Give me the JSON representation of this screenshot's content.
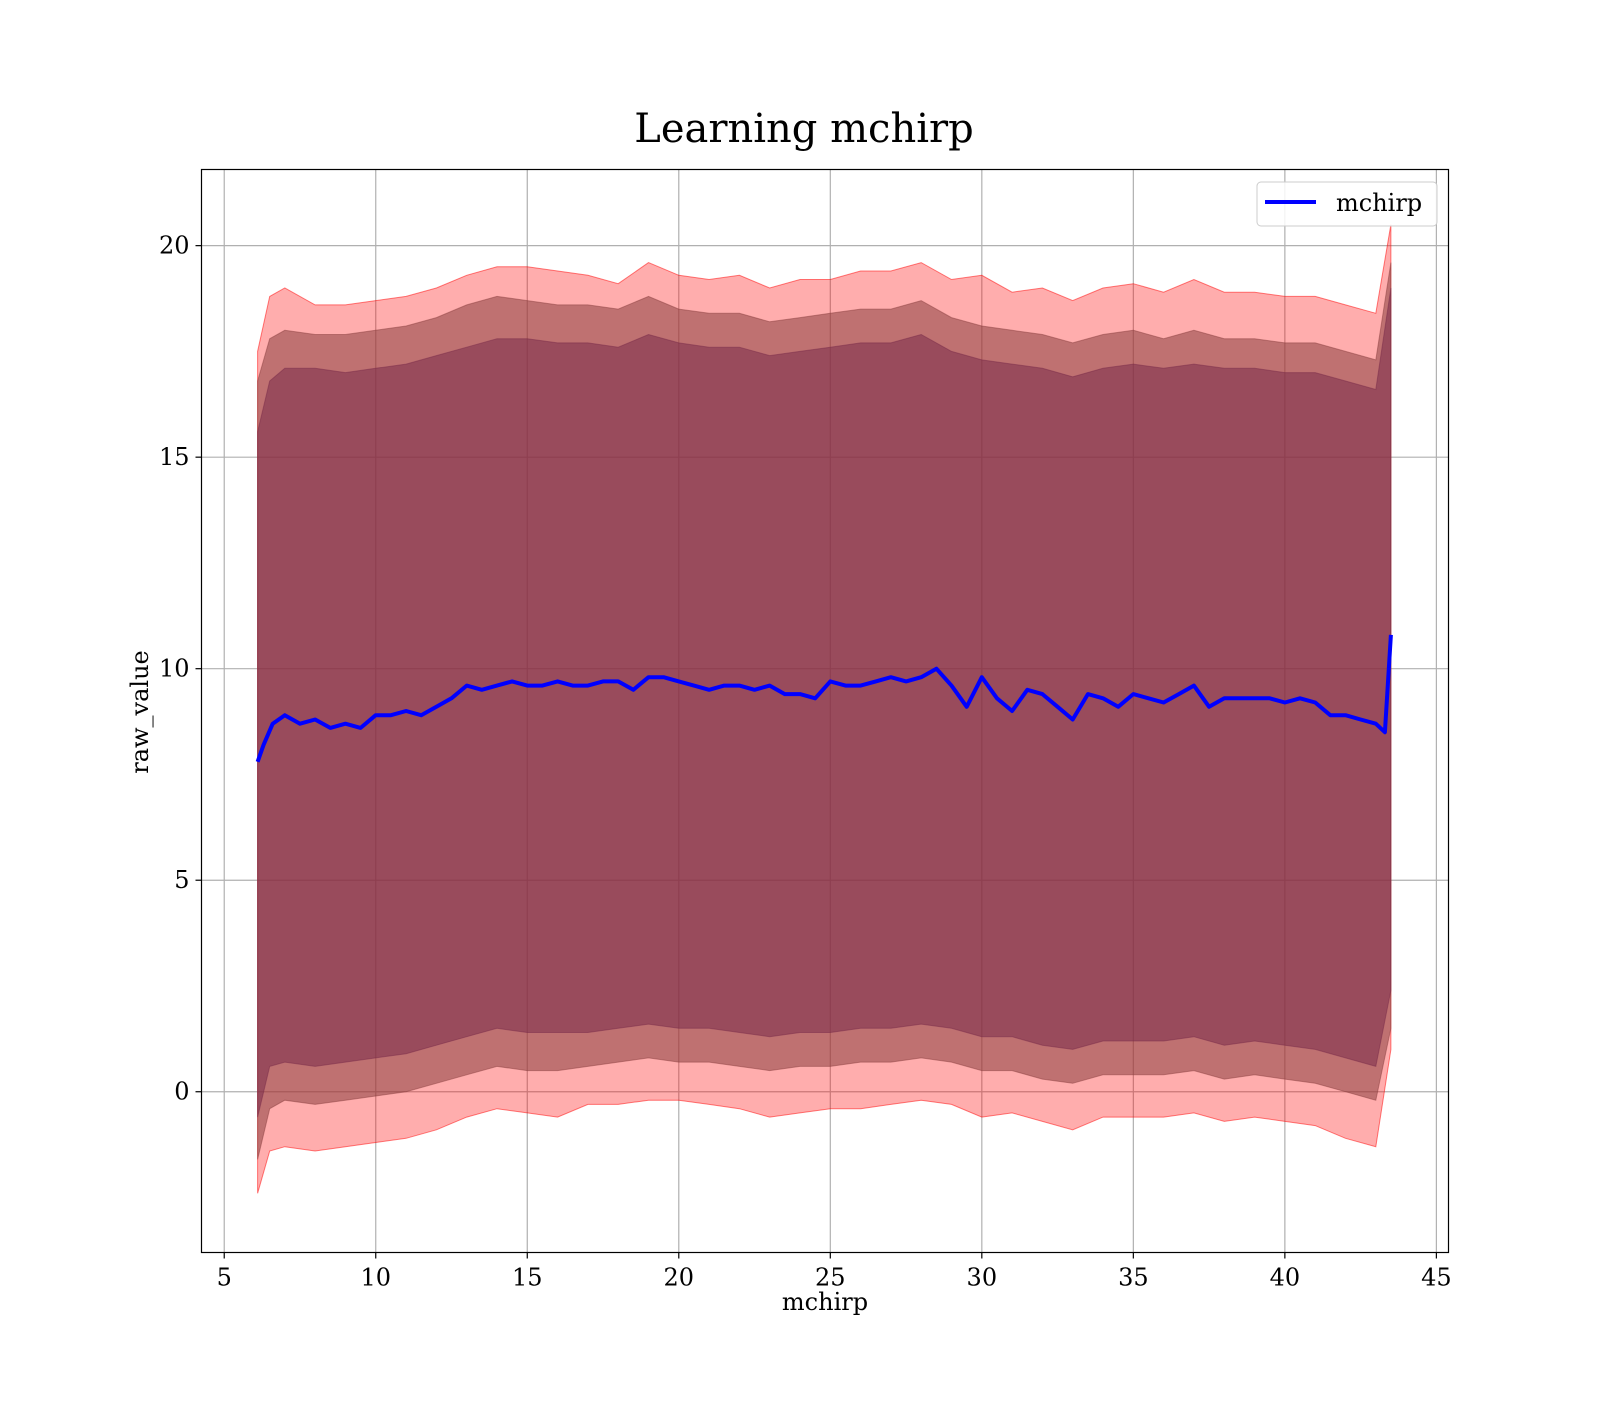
{
  "chart_data": {
    "type": "line",
    "title": "Learning mchirp",
    "xlabel": "mchirp",
    "ylabel": "raw_value",
    "xlim": [
      4.25,
      45.4
    ],
    "ylim": [
      -3.8,
      21.8
    ],
    "xticks": [
      5,
      10,
      15,
      20,
      25,
      30,
      35,
      40,
      45
    ],
    "yticks": [
      0,
      5,
      10,
      15,
      20
    ],
    "grid": true,
    "legend": {
      "position": "top-right",
      "entries": [
        "mchirp"
      ]
    },
    "colors": {
      "line": "#0000ff",
      "band_outer": "#ff0000",
      "band_inner": "#8b3f3f",
      "band_core": "#7a2c4a",
      "grid": "#b0b0b0"
    },
    "series": [
      {
        "name": "mchirp",
        "x": [
          6.1,
          6.3,
          6.6,
          7.0,
          7.5,
          8.0,
          8.5,
          9.0,
          9.5,
          10.0,
          10.5,
          11.0,
          11.5,
          12.0,
          12.5,
          13.0,
          13.5,
          14.0,
          14.5,
          15.0,
          15.5,
          16.0,
          16.5,
          17.0,
          17.5,
          18.0,
          18.5,
          19.0,
          19.5,
          20.0,
          20.5,
          21.0,
          21.5,
          22.0,
          22.5,
          23.0,
          23.5,
          24.0,
          24.5,
          25.0,
          25.5,
          26.0,
          26.5,
          27.0,
          27.5,
          28.0,
          28.5,
          29.0,
          29.5,
          30.0,
          30.5,
          31.0,
          31.5,
          32.0,
          32.5,
          33.0,
          33.5,
          34.0,
          34.5,
          35.0,
          35.5,
          36.0,
          36.5,
          37.0,
          37.5,
          38.0,
          38.5,
          39.0,
          39.5,
          40.0,
          40.5,
          41.0,
          41.5,
          42.0,
          42.5,
          43.0,
          43.3,
          43.5
        ],
        "y": [
          7.8,
          8.2,
          8.7,
          8.9,
          8.7,
          8.8,
          8.6,
          8.7,
          8.6,
          8.9,
          8.9,
          9.0,
          8.9,
          9.1,
          9.3,
          9.6,
          9.5,
          9.6,
          9.7,
          9.6,
          9.6,
          9.7,
          9.6,
          9.6,
          9.7,
          9.7,
          9.5,
          9.8,
          9.8,
          9.7,
          9.6,
          9.5,
          9.6,
          9.6,
          9.5,
          9.6,
          9.4,
          9.4,
          9.3,
          9.7,
          9.6,
          9.6,
          9.7,
          9.8,
          9.7,
          9.8,
          10.0,
          9.6,
          9.1,
          9.8,
          9.3,
          9.0,
          9.5,
          9.4,
          9.1,
          8.8,
          9.4,
          9.3,
          9.1,
          9.4,
          9.3,
          9.2,
          9.4,
          9.6,
          9.1,
          9.3,
          9.3,
          9.3,
          9.3,
          9.2,
          9.3,
          9.2,
          8.9,
          8.9,
          8.8,
          8.7,
          8.5,
          10.8
        ]
      },
      {
        "name": "band_outer_upper",
        "x": [
          6.1,
          6.5,
          7.0,
          8.0,
          9.0,
          10.0,
          11.0,
          12.0,
          13.0,
          14.0,
          15.0,
          16.0,
          17.0,
          18.0,
          19.0,
          20.0,
          21.0,
          22.0,
          23.0,
          24.0,
          25.0,
          26.0,
          27.0,
          28.0,
          29.0,
          30.0,
          31.0,
          32.0,
          33.0,
          34.0,
          35.0,
          36.0,
          37.0,
          38.0,
          39.0,
          40.0,
          41.0,
          42.0,
          43.0,
          43.5
        ],
        "y": [
          17.5,
          18.8,
          19.0,
          18.6,
          18.6,
          18.7,
          18.8,
          19.0,
          19.3,
          19.5,
          19.5,
          19.4,
          19.3,
          19.1,
          19.6,
          19.3,
          19.2,
          19.3,
          19.0,
          19.2,
          19.2,
          19.4,
          19.4,
          19.6,
          19.2,
          19.3,
          18.9,
          19.0,
          18.7,
          19.0,
          19.1,
          18.9,
          19.2,
          18.9,
          18.9,
          18.8,
          18.8,
          18.6,
          18.4,
          20.5
        ]
      },
      {
        "name": "band_outer_lower",
        "x": [
          6.1,
          6.5,
          7.0,
          8.0,
          9.0,
          10.0,
          11.0,
          12.0,
          13.0,
          14.0,
          15.0,
          16.0,
          17.0,
          18.0,
          19.0,
          20.0,
          21.0,
          22.0,
          23.0,
          24.0,
          25.0,
          26.0,
          27.0,
          28.0,
          29.0,
          30.0,
          31.0,
          32.0,
          33.0,
          34.0,
          35.0,
          36.0,
          37.0,
          38.0,
          39.0,
          40.0,
          41.0,
          42.0,
          43.0,
          43.5
        ],
        "y": [
          -2.4,
          -1.4,
          -1.3,
          -1.4,
          -1.3,
          -1.2,
          -1.1,
          -0.9,
          -0.6,
          -0.4,
          -0.5,
          -0.6,
          -0.3,
          -0.3,
          -0.2,
          -0.2,
          -0.3,
          -0.4,
          -0.6,
          -0.5,
          -0.4,
          -0.4,
          -0.3,
          -0.2,
          -0.3,
          -0.6,
          -0.5,
          -0.7,
          -0.9,
          -0.6,
          -0.6,
          -0.6,
          -0.5,
          -0.7,
          -0.6,
          -0.7,
          -0.8,
          -1.1,
          -1.3,
          1.0
        ]
      },
      {
        "name": "band_inner_upper",
        "x": [
          6.1,
          6.5,
          7.0,
          8.0,
          9.0,
          10.0,
          11.0,
          12.0,
          13.0,
          14.0,
          15.0,
          16.0,
          17.0,
          18.0,
          19.0,
          20.0,
          21.0,
          22.0,
          23.0,
          24.0,
          25.0,
          26.0,
          27.0,
          28.0,
          29.0,
          30.0,
          31.0,
          32.0,
          33.0,
          34.0,
          35.0,
          36.0,
          37.0,
          38.0,
          39.0,
          40.0,
          41.0,
          42.0,
          43.0,
          43.5
        ],
        "y": [
          16.8,
          17.8,
          18.0,
          17.9,
          17.9,
          18.0,
          18.1,
          18.3,
          18.6,
          18.8,
          18.7,
          18.6,
          18.6,
          18.5,
          18.8,
          18.5,
          18.4,
          18.4,
          18.2,
          18.3,
          18.4,
          18.5,
          18.5,
          18.7,
          18.3,
          18.1,
          18.0,
          17.9,
          17.7,
          17.9,
          18.0,
          17.8,
          18.0,
          17.8,
          17.8,
          17.7,
          17.7,
          17.5,
          17.3,
          19.6
        ]
      },
      {
        "name": "band_inner_lower",
        "x": [
          6.1,
          6.5,
          7.0,
          8.0,
          9.0,
          10.0,
          11.0,
          12.0,
          13.0,
          14.0,
          15.0,
          16.0,
          17.0,
          18.0,
          19.0,
          20.0,
          21.0,
          22.0,
          23.0,
          24.0,
          25.0,
          26.0,
          27.0,
          28.0,
          29.0,
          30.0,
          31.0,
          32.0,
          33.0,
          34.0,
          35.0,
          36.0,
          37.0,
          38.0,
          39.0,
          40.0,
          41.0,
          42.0,
          43.0,
          43.5
        ],
        "y": [
          -1.6,
          -0.4,
          -0.2,
          -0.3,
          -0.2,
          -0.1,
          0.0,
          0.2,
          0.4,
          0.6,
          0.5,
          0.5,
          0.6,
          0.7,
          0.8,
          0.7,
          0.7,
          0.6,
          0.5,
          0.6,
          0.6,
          0.7,
          0.7,
          0.8,
          0.7,
          0.5,
          0.5,
          0.3,
          0.2,
          0.4,
          0.4,
          0.4,
          0.5,
          0.3,
          0.4,
          0.3,
          0.2,
          0.0,
          -0.2,
          1.5
        ]
      },
      {
        "name": "band_core_upper",
        "x": [
          6.1,
          6.5,
          7.0,
          8.0,
          9.0,
          10.0,
          11.0,
          12.0,
          13.0,
          14.0,
          15.0,
          16.0,
          17.0,
          18.0,
          19.0,
          20.0,
          21.0,
          22.0,
          23.0,
          24.0,
          25.0,
          26.0,
          27.0,
          28.0,
          29.0,
          30.0,
          31.0,
          32.0,
          33.0,
          34.0,
          35.0,
          36.0,
          37.0,
          38.0,
          39.0,
          40.0,
          41.0,
          42.0,
          43.0,
          43.5
        ],
        "y": [
          15.6,
          16.8,
          17.1,
          17.1,
          17.0,
          17.1,
          17.2,
          17.4,
          17.6,
          17.8,
          17.8,
          17.7,
          17.7,
          17.6,
          17.9,
          17.7,
          17.6,
          17.6,
          17.4,
          17.5,
          17.6,
          17.7,
          17.7,
          17.9,
          17.5,
          17.3,
          17.2,
          17.1,
          16.9,
          17.1,
          17.2,
          17.1,
          17.2,
          17.1,
          17.1,
          17.0,
          17.0,
          16.8,
          16.6,
          19.0
        ]
      },
      {
        "name": "band_core_lower",
        "x": [
          6.1,
          6.5,
          7.0,
          8.0,
          9.0,
          10.0,
          11.0,
          12.0,
          13.0,
          14.0,
          15.0,
          16.0,
          17.0,
          18.0,
          19.0,
          20.0,
          21.0,
          22.0,
          23.0,
          24.0,
          25.0,
          26.0,
          27.0,
          28.0,
          29.0,
          30.0,
          31.0,
          32.0,
          33.0,
          34.0,
          35.0,
          36.0,
          37.0,
          38.0,
          39.0,
          40.0,
          41.0,
          42.0,
          43.0,
          43.5
        ],
        "y": [
          -0.6,
          0.6,
          0.7,
          0.6,
          0.7,
          0.8,
          0.9,
          1.1,
          1.3,
          1.5,
          1.4,
          1.4,
          1.4,
          1.5,
          1.6,
          1.5,
          1.5,
          1.4,
          1.3,
          1.4,
          1.4,
          1.5,
          1.5,
          1.6,
          1.5,
          1.3,
          1.3,
          1.1,
          1.0,
          1.2,
          1.2,
          1.2,
          1.3,
          1.1,
          1.2,
          1.1,
          1.0,
          0.8,
          0.6,
          2.4
        ]
      }
    ]
  }
}
